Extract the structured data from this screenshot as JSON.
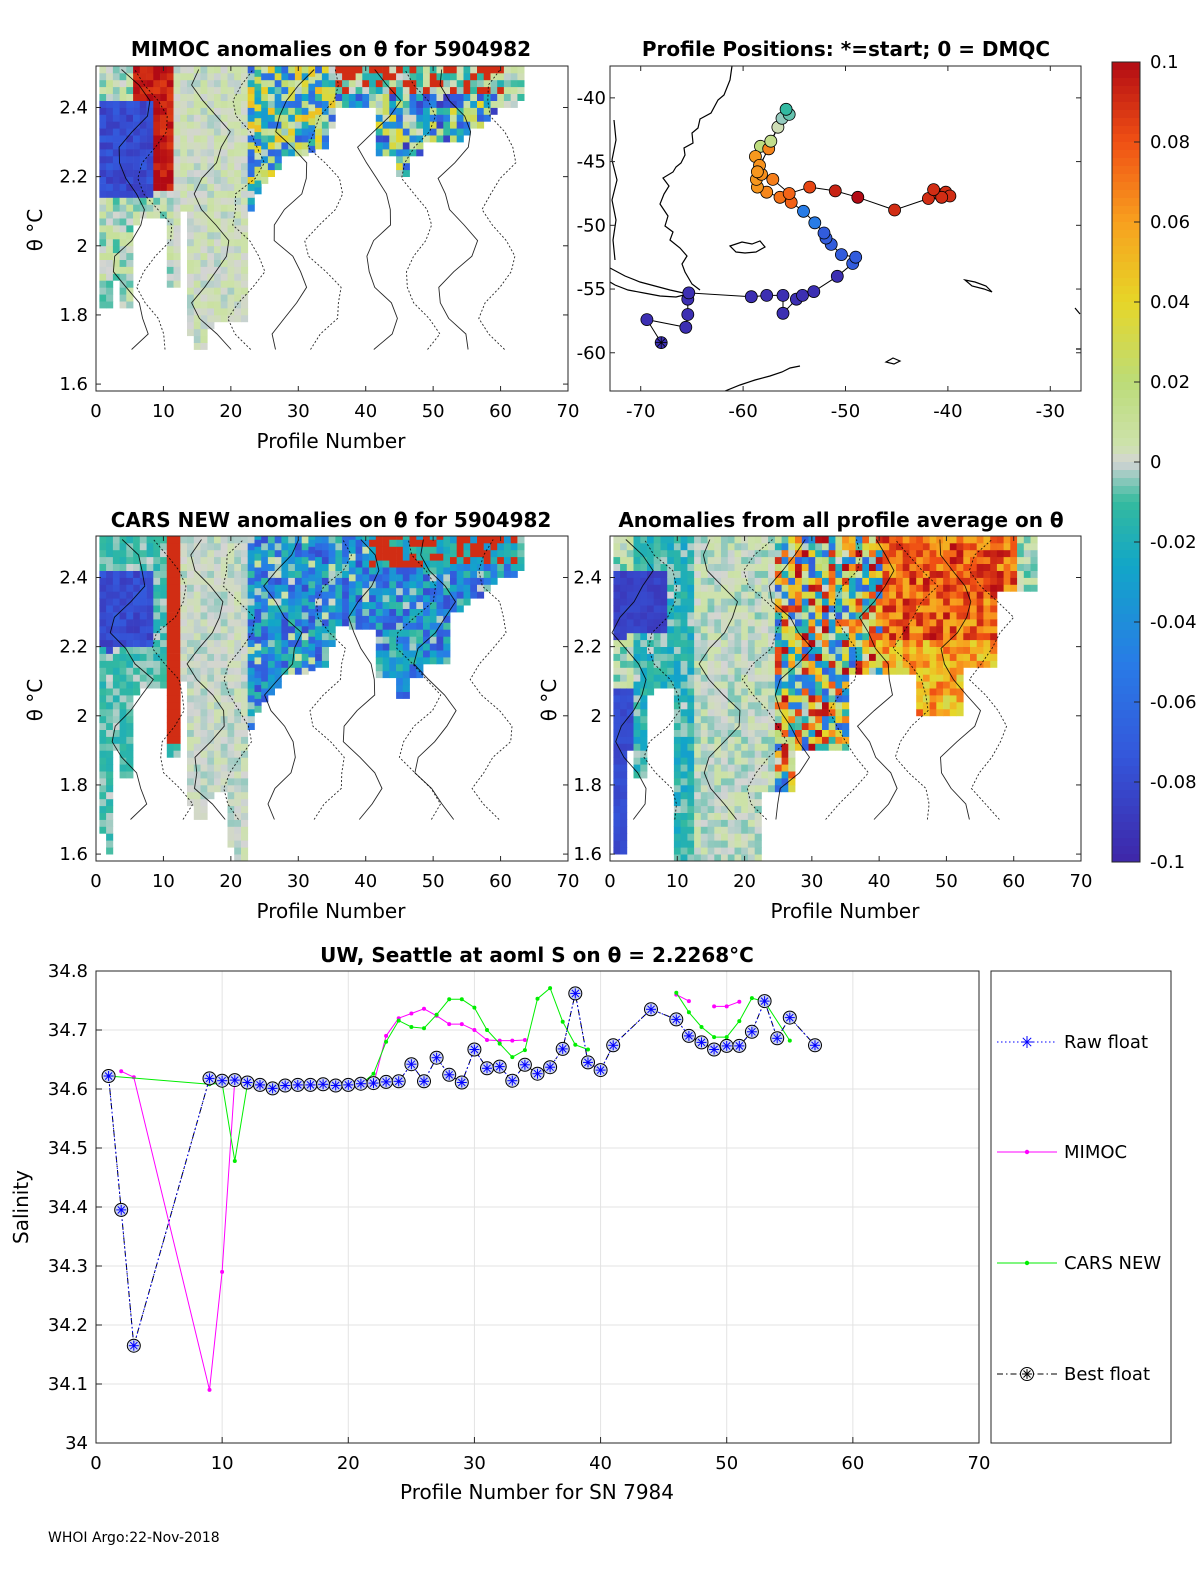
{
  "footer": "WHOI Argo:22-Nov-2018",
  "chart_data": [
    {
      "id": "mimoc",
      "type": "heatmap",
      "title": "MIMOC anomalies on θ  for 5904982",
      "xlabel": "Profile Number",
      "ylabel": "θ °C",
      "xlim": [
        0,
        70
      ],
      "ylim": [
        1.58,
        2.52
      ],
      "xticks": [
        "0",
        "10",
        "20",
        "30",
        "40",
        "50",
        "60",
        "70"
      ],
      "yticks": [
        "1.6",
        "1.8",
        "2",
        "2.2",
        "2.4"
      ],
      "pattern": "mimoc"
    },
    {
      "id": "positions",
      "type": "scatter",
      "title": "Profile Positions: *=start; 0 = DMQC",
      "xlabel": "",
      "ylabel": "",
      "xlim": [
        -73,
        -27
      ],
      "ylim": [
        -63,
        -37.5
      ],
      "xticks": [
        "-70",
        "-60",
        "-50",
        "-40",
        "-30"
      ],
      "yticks": [
        "-40",
        "-45",
        "-50",
        "-55",
        "-60"
      ],
      "track": [
        [
          -68.0,
          -59.2
        ],
        [
          -69.4,
          -57.4
        ],
        [
          -65.6,
          -58.0
        ],
        [
          -65.4,
          -57.0
        ],
        [
          -65.4,
          -55.8
        ],
        [
          -65.3,
          -55.3
        ],
        [
          -59.2,
          -55.6
        ],
        [
          -57.7,
          -55.5
        ],
        [
          -56.1,
          -55.5
        ],
        [
          -56.1,
          -56.9
        ],
        [
          -54.8,
          -55.8
        ],
        [
          -54.2,
          -55.5
        ],
        [
          -53.1,
          -55.2
        ],
        [
          -50.8,
          -54.0
        ],
        [
          -49.3,
          -53.0
        ],
        [
          -49.0,
          -52.5
        ],
        [
          -50.4,
          -52.3
        ],
        [
          -51.4,
          -51.5
        ],
        [
          -51.9,
          -51.0
        ],
        [
          -52.1,
          -50.6
        ],
        [
          -53.0,
          -49.8
        ],
        [
          -54.1,
          -48.9
        ],
        [
          -55.3,
          -48.2
        ],
        [
          -56.4,
          -47.8
        ],
        [
          -57.7,
          -47.4
        ],
        [
          -58.6,
          -47.0
        ],
        [
          -58.7,
          -46.4
        ],
        [
          -58.2,
          -46.0
        ],
        [
          -57.1,
          -46.4
        ],
        [
          -55.5,
          -47.5
        ],
        [
          -53.5,
          -47.0
        ],
        [
          -51.0,
          -47.3
        ],
        [
          -48.8,
          -47.8
        ],
        [
          -45.2,
          -48.8
        ],
        [
          -41.9,
          -47.9
        ],
        [
          -40.8,
          -47.6
        ],
        [
          -40.2,
          -47.4
        ],
        [
          -39.8,
          -47.7
        ],
        [
          -40.6,
          -47.8
        ],
        [
          -41.4,
          -47.2
        ],
        [
          -58.3,
          -43.8
        ],
        [
          -58.8,
          -44.6
        ],
        [
          -58.4,
          -45.3
        ],
        [
          -57.5,
          -44.0
        ],
        [
          -57.3,
          -43.4
        ],
        [
          -56.6,
          -42.3
        ],
        [
          -56.2,
          -41.6
        ],
        [
          -55.5,
          -41.3
        ],
        [
          -55.8,
          -40.9
        ],
        [
          -58.6,
          -45.8
        ]
      ]
    },
    {
      "id": "cars",
      "type": "heatmap",
      "title": "CARS NEW anomalies on θ for 5904982",
      "xlabel": "Profile Number",
      "ylabel": "θ °C",
      "xlim": [
        0,
        70
      ],
      "ylim": [
        1.58,
        2.52
      ],
      "xticks": [
        "0",
        "10",
        "20",
        "30",
        "40",
        "50",
        "60",
        "70"
      ],
      "yticks": [
        "1.6",
        "1.8",
        "2",
        "2.2",
        "2.4"
      ],
      "pattern": "cars"
    },
    {
      "id": "avg",
      "type": "heatmap",
      "title": "Anomalies from all profile average on θ",
      "xlabel": "Profile Number",
      "ylabel": "θ °C",
      "xlim": [
        0,
        70
      ],
      "ylim": [
        1.58,
        2.52
      ],
      "xticks": [
        "0",
        "10",
        "20",
        "30",
        "40",
        "50",
        "60",
        "70"
      ],
      "yticks": [
        "1.6",
        "1.8",
        "2",
        "2.2",
        "2.4"
      ],
      "pattern": "avg"
    },
    {
      "id": "colorbar",
      "type": "colorbar",
      "range": [
        -0.1,
        0.1
      ],
      "ticks": [
        "0.1",
        "0.08",
        "0.06",
        "0.04",
        "0.02",
        "0",
        "-0.02",
        "-0.04",
        "-0.06",
        "-0.08",
        "-0.1"
      ],
      "tick_values": [
        0.1,
        0.08,
        0.06,
        0.04,
        0.02,
        0,
        -0.02,
        -0.04,
        -0.06,
        -0.08,
        -0.1
      ]
    },
    {
      "id": "salinity",
      "type": "line",
      "title": "UW, Seattle at aoml S on θ = 2.2268°C",
      "xlabel": "Profile Number for SN 7984",
      "ylabel": "Salinity",
      "xlim": [
        0,
        70
      ],
      "ylim": [
        34,
        34.8
      ],
      "xticks": [
        "0",
        "10",
        "20",
        "30",
        "40",
        "50",
        "60",
        "70"
      ],
      "yticks": [
        "34",
        "34.1",
        "34.2",
        "34.3",
        "34.4",
        "34.5",
        "34.6",
        "34.7",
        "34.8"
      ],
      "legend": [
        "Raw float",
        "MIMOC",
        "CARS NEW",
        "Best float"
      ],
      "series": [
        {
          "name": "Raw float",
          "color": "#0000ff",
          "x": [
            1,
            2,
            3,
            9,
            10,
            11,
            12,
            13,
            14,
            15,
            16,
            17,
            18,
            19,
            20,
            21,
            22,
            23,
            24,
            25,
            26,
            27,
            28,
            29,
            30,
            31,
            32,
            33,
            34,
            35,
            36,
            37,
            38,
            39,
            40,
            41,
            44,
            46,
            47,
            48,
            49,
            50,
            51,
            52,
            53,
            54,
            55,
            57
          ],
          "y": [
            34.622,
            34.395,
            34.165,
            34.618,
            34.614,
            34.615,
            34.611,
            34.607,
            34.601,
            34.606,
            34.607,
            34.607,
            34.608,
            34.606,
            34.607,
            34.609,
            34.61,
            34.612,
            34.613,
            34.642,
            34.613,
            34.653,
            34.624,
            34.611,
            34.667,
            34.635,
            34.638,
            34.614,
            34.641,
            34.626,
            34.637,
            34.668,
            34.762,
            34.645,
            34.632,
            34.674,
            34.735,
            34.718,
            34.69,
            34.679,
            34.667,
            34.673,
            34.673,
            34.697,
            34.749,
            34.686,
            34.721,
            34.674
          ]
        },
        {
          "name": "MIMOC",
          "color": "#ff00ff",
          "segments": [
            {
              "x": [
                2,
                3,
                9,
                10,
                11,
                12,
                13,
                14,
                15,
                16,
                17,
                18,
                19,
                20,
                21,
                22,
                23,
                24,
                25,
                26,
                27,
                28,
                29,
                30,
                31,
                32,
                33,
                34
              ],
              "y": [
                34.63,
                34.62,
                34.09,
                34.29,
                34.616,
                34.609,
                34.605,
                34.603,
                34.605,
                34.606,
                34.606,
                34.606,
                34.607,
                34.607,
                34.607,
                34.608,
                34.69,
                34.72,
                34.728,
                34.736,
                34.724,
                34.71,
                34.71,
                34.7,
                34.683,
                34.682,
                34.682,
                34.683
              ]
            },
            {
              "x": [
                46,
                47
              ],
              "y": [
                34.76,
                34.749
              ]
            },
            {
              "x": [
                49,
                50,
                51
              ],
              "y": [
                34.74,
                34.74,
                34.748
              ]
            }
          ]
        },
        {
          "name": "CARS NEW",
          "color": "#00ee00",
          "segments": [
            {
              "x": [
                1,
                9,
                10,
                11,
                12,
                13,
                14,
                15,
                16,
                17,
                18,
                19,
                20,
                21,
                22,
                23,
                24,
                25,
                26,
                27,
                28,
                29,
                30,
                31,
                32,
                33,
                34,
                35,
                36,
                37,
                38,
                39
              ],
              "y": [
                34.622,
                34.608,
                34.61,
                34.478,
                34.608,
                34.607,
                34.604,
                34.606,
                34.607,
                34.607,
                34.607,
                34.607,
                34.608,
                34.608,
                34.626,
                34.68,
                34.716,
                34.705,
                34.703,
                34.726,
                34.752,
                34.752,
                34.738,
                34.7,
                34.677,
                34.654,
                34.666,
                34.753,
                34.771,
                34.714,
                34.675,
                34.667
              ]
            },
            {
              "x": [
                46,
                47,
                48,
                49,
                50,
                51,
                52,
                53,
                55
              ],
              "y": [
                34.763,
                34.73,
                34.705,
                34.688,
                34.688,
                34.715,
                34.754,
                34.748,
                34.682
              ]
            }
          ]
        },
        {
          "name": "Best float",
          "color": "#000000",
          "same_as": "Raw float"
        }
      ]
    }
  ]
}
